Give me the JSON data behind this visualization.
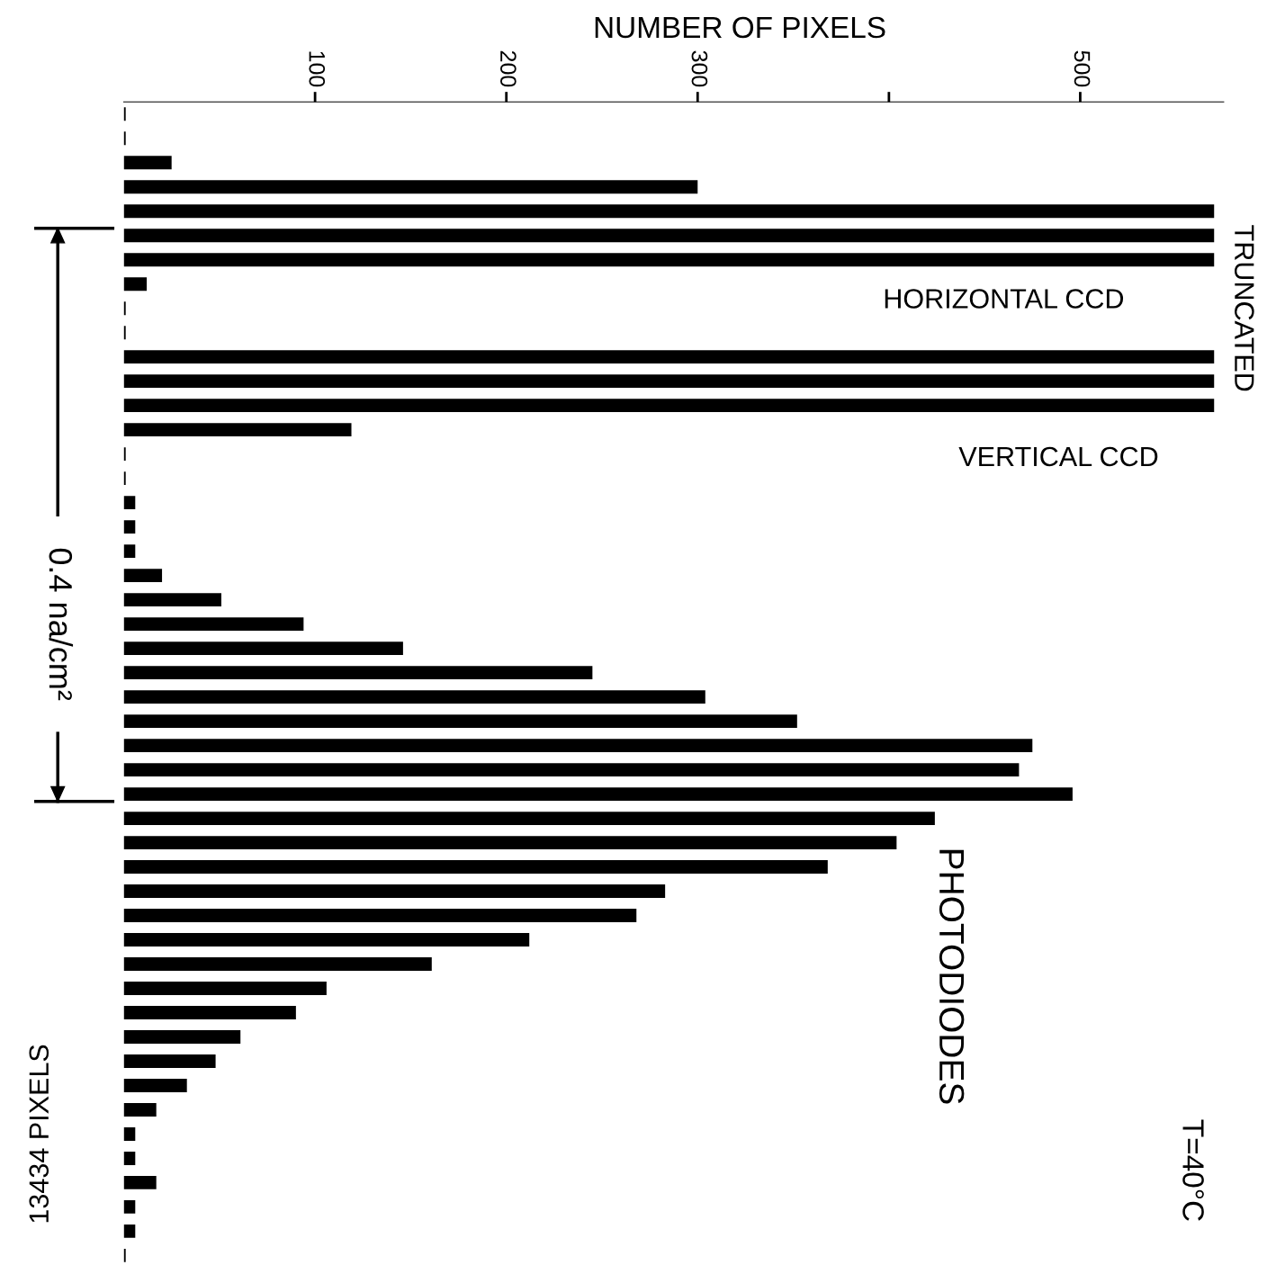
{
  "chart_data": {
    "type": "bar",
    "orientation": "horizontal",
    "xlabel": "NUMBER OF PIXELS",
    "categories": [
      null,
      null,
      null,
      null,
      null,
      null,
      null,
      null,
      null,
      null,
      null,
      null,
      null,
      null,
      null,
      null,
      null,
      null,
      null,
      null,
      null,
      null,
      null,
      null,
      null,
      null,
      null,
      null,
      null,
      null,
      null,
      null,
      null,
      null,
      null,
      null,
      null,
      null,
      null,
      null,
      null,
      null,
      null,
      null,
      null,
      null,
      null,
      null
    ],
    "values": [
      1,
      1,
      25,
      300,
      570,
      570,
      570,
      12,
      1,
      1,
      570,
      570,
      570,
      119,
      1,
      1,
      6,
      6,
      6,
      20,
      51,
      94,
      146,
      245,
      304,
      352,
      475,
      468,
      496,
      424,
      404,
      368,
      283,
      268,
      212,
      161,
      106,
      90,
      61,
      48,
      33,
      17,
      6,
      6,
      17,
      6,
      6,
      1
    ],
    "color": "#000000",
    "xlim": [
      0,
      575
    ],
    "xticks": [
      100,
      200,
      300,
      {
        "value": 400,
        "label": null
      },
      500
    ],
    "tick_labels": "x",
    "grid": false,
    "legend": false,
    "annotations": [
      "TRUNCATED",
      "HORIZONTAL CCD",
      "VERTICAL CCD",
      "0.4 na/cm²",
      "PHOTODIODES",
      "T=40°C",
      "13434 PIXELS"
    ]
  }
}
